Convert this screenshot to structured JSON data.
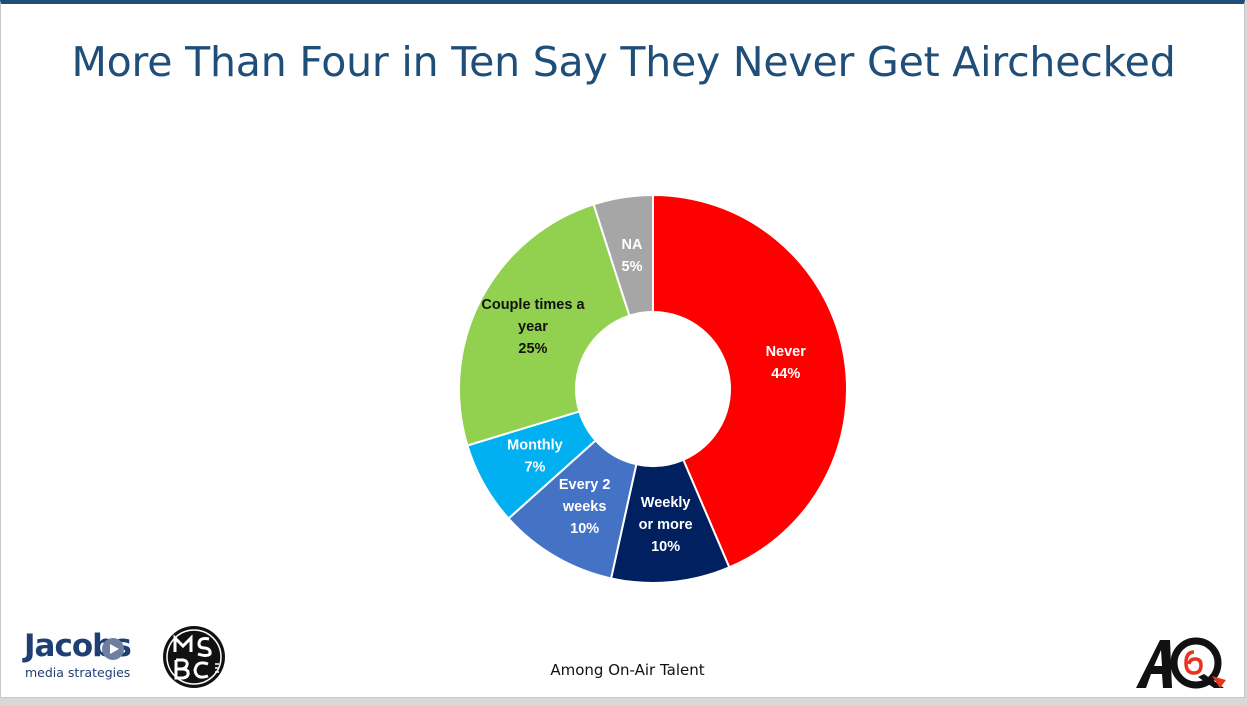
{
  "slide": {
    "title": "More Than Four in Ten Say They Never Get Airchecked",
    "note": "Among On-Air Talent"
  },
  "logos": {
    "jacobs_word": "Jacobs",
    "jacobs_sub": "media strategies"
  },
  "chart_data": {
    "type": "pie",
    "donut": true,
    "title": "More Than Four in Ten Say They Never Get Airchecked",
    "series": [
      {
        "name": "Never",
        "label_lines": [
          "Never",
          "44%"
        ],
        "value": 44,
        "color": "#ff0000",
        "label_color": "#ffffff"
      },
      {
        "name": "Weekly or more",
        "label_lines": [
          "Weekly",
          "or more",
          "10%"
        ],
        "value": 10,
        "color": "#002060",
        "label_color": "#ffffff"
      },
      {
        "name": "Every 2 weeks",
        "label_lines": [
          "Every 2",
          "weeks",
          "10%"
        ],
        "value": 10,
        "color": "#4472c4",
        "label_color": "#ffffff"
      },
      {
        "name": "Monthly",
        "label_lines": [
          "Monthly",
          "7%"
        ],
        "value": 7,
        "color": "#00b0f0",
        "label_color": "#ffffff"
      },
      {
        "name": "Couple times a year",
        "label_lines": [
          "Couple times a",
          "year",
          "25%"
        ],
        "value": 25,
        "color": "#92d050",
        "label_color": "#111111"
      },
      {
        "name": "NA",
        "label_lines": [
          "NA",
          "5%"
        ],
        "value": 5,
        "color": "#a6a6a6",
        "label_color": "#ffffff"
      }
    ],
    "legend": "none"
  }
}
